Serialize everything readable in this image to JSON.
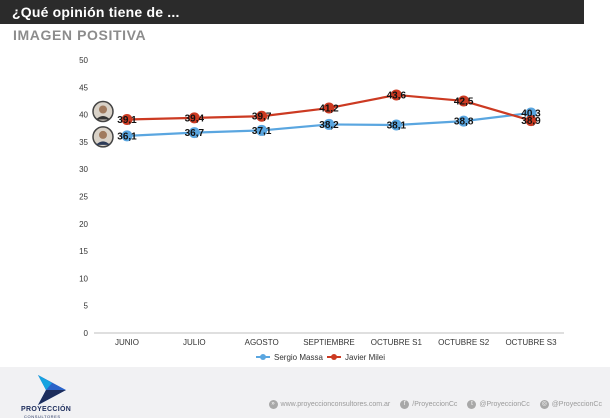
{
  "header": {
    "title": "¿Qué opinión tiene de ...",
    "subtitle": "IMAGEN POSITIVA"
  },
  "colors": {
    "massa": "#5aa6e0",
    "milei": "#cc3a22",
    "header_bg": "#2b2b2b"
  },
  "chart_data": {
    "type": "line",
    "title": "IMAGEN POSITIVA",
    "categories": [
      "JUNIO",
      "JULIO",
      "AGOSTO",
      "SEPTIEMBRE",
      "OCTUBRE S1",
      "OCTUBRE S2",
      "OCTUBRE S3"
    ],
    "yticks": [
      "0",
      "5",
      "10",
      "15",
      "20",
      "25",
      "30",
      "35",
      "40",
      "45",
      "50"
    ],
    "ylim": [
      0,
      50
    ],
    "series": [
      {
        "name": "Sergio Massa",
        "values": [
          36.1,
          36.7,
          37.1,
          38.2,
          38.1,
          38.8,
          40.3
        ],
        "labels": [
          "36,1",
          "36,7",
          "37,1",
          "38,2",
          "38,1",
          "38,8",
          "40,3"
        ]
      },
      {
        "name": "Javier Milei",
        "values": [
          39.1,
          39.4,
          39.7,
          41.2,
          43.6,
          42.5,
          38.9
        ],
        "labels": [
          "39,1",
          "39,4",
          "39,7",
          "41,2",
          "43,6",
          "42,5",
          "38,9"
        ]
      }
    ],
    "legend": [
      "Sergio Massa",
      "Javier Milei"
    ],
    "legend_position": "bottom"
  },
  "footer": {
    "brand_name": "PROYECCIÓN",
    "brand_sub": "CONSULTORES",
    "website": "www.proyeccionconsultores.com.ar",
    "facebook": "/ProyeccionCc",
    "twitter": "@ProyeccionCc",
    "instagram": "@ProyeccionCc"
  }
}
